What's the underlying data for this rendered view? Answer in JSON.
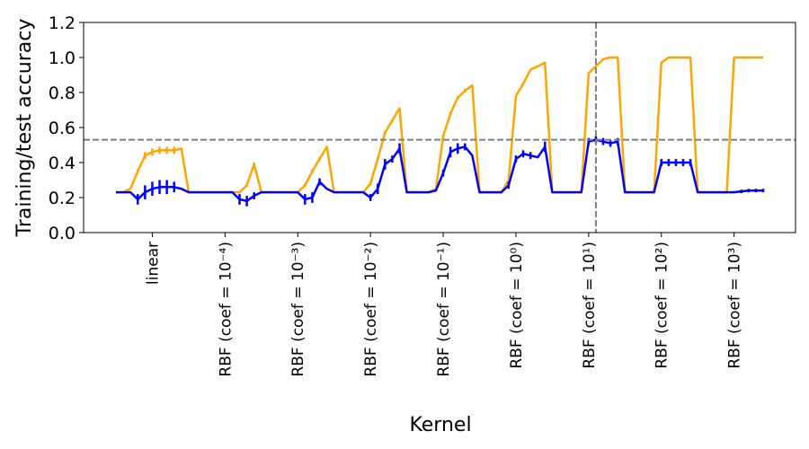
{
  "chart_data": {
    "type": "line",
    "xlabel": "Kernel",
    "ylabel": "Training/test accuracy",
    "x": [
      0,
      1,
      2,
      3,
      4,
      5,
      6,
      7,
      8,
      9,
      10,
      11,
      12,
      13,
      14,
      15,
      16,
      17,
      18,
      19,
      20,
      21,
      22,
      23,
      24,
      25,
      26,
      27,
      28,
      29,
      30,
      31,
      32,
      33,
      34,
      35,
      36,
      37,
      38,
      39,
      40,
      41,
      42,
      43,
      44,
      45,
      46,
      47,
      48,
      49,
      50,
      51,
      52,
      53,
      54,
      55,
      56,
      57,
      58,
      59,
      60,
      61,
      62,
      63,
      64,
      65,
      66,
      67,
      68,
      69,
      70,
      71,
      72,
      73,
      74,
      75,
      76,
      77,
      78,
      79,
      80,
      81,
      82,
      83,
      84,
      85,
      86,
      87,
      88,
      89
    ],
    "series": [
      {
        "color": "#ffa500",
        "values": [
          0.23,
          0.23,
          0.25,
          0.35,
          0.44,
          0.46,
          0.47,
          0.47,
          0.47,
          0.48,
          0.23,
          0.23,
          0.23,
          0.23,
          0.23,
          0.23,
          0.23,
          0.23,
          0.27,
          0.39,
          0.23,
          0.23,
          0.23,
          0.23,
          0.23,
          0.23,
          0.27,
          0.35,
          0.42,
          0.49,
          0.23,
          0.23,
          0.23,
          0.23,
          0.23,
          0.28,
          0.42,
          0.57,
          0.64,
          0.71,
          0.23,
          0.23,
          0.23,
          0.23,
          0.25,
          0.55,
          0.68,
          0.77,
          0.81,
          0.84,
          0.23,
          0.23,
          0.23,
          0.23,
          0.3,
          0.78,
          0.85,
          0.93,
          0.95,
          0.97,
          0.23,
          0.23,
          0.23,
          0.23,
          0.23,
          0.91,
          0.95,
          0.99,
          1.0,
          1.0,
          0.23,
          0.23,
          0.23,
          0.23,
          0.23,
          0.97,
          1.0,
          1.0,
          1.0,
          1.0,
          0.23,
          0.23,
          0.23,
          0.23,
          0.23,
          1.0,
          1.0,
          1.0,
          1.0,
          1.0
        ],
        "errors": [
          0,
          0,
          0,
          0.01,
          0.02,
          0.02,
          0.02,
          0.02,
          0.02,
          0,
          0,
          0,
          0,
          0,
          0,
          0,
          0,
          0,
          0.01,
          0.01,
          0,
          0,
          0,
          0,
          0,
          0,
          0.01,
          0.01,
          0.01,
          0,
          0,
          0,
          0,
          0,
          0,
          0.01,
          0.01,
          0.01,
          0.01,
          0,
          0,
          0,
          0,
          0,
          0,
          0.01,
          0.01,
          0.01,
          0.01,
          0,
          0,
          0,
          0,
          0,
          0,
          0,
          0,
          0,
          0,
          0,
          0,
          0,
          0,
          0,
          0,
          0,
          0,
          0,
          0,
          0,
          0,
          0,
          0,
          0,
          0,
          0,
          0,
          0,
          0,
          0,
          0,
          0,
          0,
          0,
          0,
          0,
          0,
          0,
          0,
          0
        ]
      },
      {
        "color": "#0000ff",
        "values": [
          0.23,
          0.23,
          0.23,
          0.19,
          0.23,
          0.25,
          0.26,
          0.26,
          0.26,
          0.25,
          0.23,
          0.23,
          0.23,
          0.23,
          0.23,
          0.23,
          0.23,
          0.19,
          0.18,
          0.21,
          0.23,
          0.23,
          0.23,
          0.23,
          0.23,
          0.23,
          0.19,
          0.2,
          0.29,
          0.25,
          0.23,
          0.23,
          0.23,
          0.23,
          0.23,
          0.2,
          0.25,
          0.39,
          0.42,
          0.48,
          0.23,
          0.23,
          0.23,
          0.23,
          0.24,
          0.34,
          0.46,
          0.48,
          0.49,
          0.44,
          0.23,
          0.23,
          0.23,
          0.23,
          0.27,
          0.42,
          0.45,
          0.44,
          0.43,
          0.49,
          0.23,
          0.23,
          0.23,
          0.23,
          0.23,
          0.52,
          0.53,
          0.52,
          0.51,
          0.52,
          0.23,
          0.23,
          0.23,
          0.23,
          0.23,
          0.4,
          0.4,
          0.4,
          0.4,
          0.4,
          0.23,
          0.23,
          0.23,
          0.23,
          0.23,
          0.23,
          0.235,
          0.24,
          0.24,
          0.24
        ],
        "errors": [
          0,
          0,
          0,
          0.03,
          0.04,
          0.04,
          0.04,
          0.04,
          0.03,
          0,
          0,
          0,
          0,
          0,
          0,
          0,
          0,
          0.03,
          0.03,
          0.02,
          0,
          0,
          0,
          0,
          0,
          0,
          0.03,
          0.03,
          0.02,
          0,
          0,
          0,
          0,
          0,
          0,
          0.02,
          0.03,
          0.03,
          0.02,
          0.03,
          0,
          0,
          0,
          0,
          0,
          0.02,
          0.03,
          0.03,
          0.02,
          0,
          0,
          0,
          0,
          0,
          0.02,
          0.02,
          0.02,
          0.02,
          0,
          0.03,
          0,
          0,
          0,
          0,
          0,
          0.02,
          0.02,
          0.02,
          0.02,
          0.02,
          0,
          0,
          0,
          0,
          0,
          0.02,
          0.02,
          0.02,
          0.02,
          0.02,
          0,
          0,
          0,
          0,
          0,
          0,
          0.01,
          0.01,
          0.01,
          0.01
        ]
      }
    ],
    "xlim": [
      -4.45,
      93.45
    ],
    "xticks": [
      {
        "value": 5,
        "label": "linear"
      },
      {
        "value": 15,
        "label": "RBF (coef = 10⁻⁴)"
      },
      {
        "value": 25,
        "label": "RBF (coef = 10⁻³)"
      },
      {
        "value": 35,
        "label": "RBF (coef = 10⁻²)"
      },
      {
        "value": 45,
        "label": "RBF (coef = 10⁻¹)"
      },
      {
        "value": 55,
        "label": "RBF (coef = 10⁰)"
      },
      {
        "value": 65,
        "label": "RBF (coef = 10¹)"
      },
      {
        "value": 75,
        "label": "RBF (coef = 10²)"
      },
      {
        "value": 85,
        "label": "RBF (coef = 10³)"
      }
    ],
    "ylim": [
      0,
      1.2
    ],
    "yticks": [
      {
        "value": 0,
        "label": "0.0"
      },
      {
        "value": 0.2,
        "label": "0.2"
      },
      {
        "value": 0.4,
        "label": "0.4"
      },
      {
        "value": 0.6,
        "label": "0.6"
      },
      {
        "value": 0.8,
        "label": "0.8"
      },
      {
        "value": 1.0,
        "label": "1.0"
      },
      {
        "value": 1.2,
        "label": "1.2"
      }
    ],
    "reference_lines": {
      "y": 0.53,
      "x": 66,
      "color": "#808080"
    },
    "grid": false
  }
}
